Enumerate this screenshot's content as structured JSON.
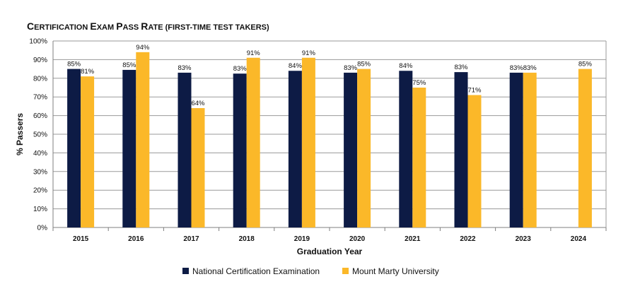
{
  "chart_data": {
    "type": "bar",
    "title": {
      "cap1": "C",
      "rest1": "ERTIFICATION ",
      "cap2": "E",
      "rest2": "XAM ",
      "cap3": "P",
      "rest3": "ASS ",
      "cap4": "R",
      "rest4": "ATE ",
      "rest5": "(FIRST-TIME TEST TAKERS)"
    },
    "xlabel": "Graduation Year",
    "ylabel": "% Passers",
    "ylim": [
      0,
      100
    ],
    "yticks": [
      "0%",
      "10%",
      "20%",
      "30%",
      "40%",
      "50%",
      "60%",
      "70%",
      "80%",
      "90%",
      "100%"
    ],
    "grid": true,
    "legend_position": "bottom",
    "categories": [
      "2015",
      "2016",
      "2017",
      "2018",
      "2019",
      "2020",
      "2021",
      "2022",
      "2023",
      "2024"
    ],
    "series": [
      {
        "name": "National Certification Examination",
        "color": "#0d1b45",
        "values": [
          85,
          84.5,
          83,
          82.5,
          84,
          83,
          84,
          83.3,
          83,
          null
        ],
        "labels": [
          "85%",
          "85%",
          "83%",
          "83%",
          "84%",
          "83%",
          "84%",
          "83%",
          "83%",
          ""
        ]
      },
      {
        "name": "Mount Marty University",
        "color": "#fbb829",
        "values": [
          81,
          94,
          64,
          91,
          91,
          85,
          75,
          71,
          83,
          85
        ],
        "labels": [
          "81%",
          "94%",
          "64%",
          "91%",
          "91%",
          "85%",
          "75%",
          "71%",
          "83%",
          "85%"
        ]
      }
    ]
  }
}
